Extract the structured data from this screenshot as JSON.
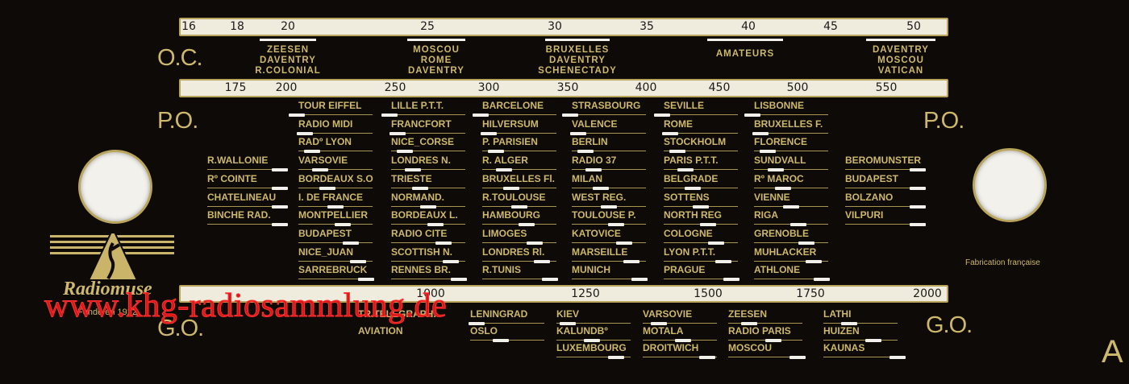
{
  "colors": {
    "background": "#0d0a07",
    "gold": "#cdb86c",
    "scale": "#efebdd",
    "watermark": "#ff1a1a"
  },
  "bands": {
    "oc": "O.C.",
    "po": "P.O.",
    "go": "G.O."
  },
  "oc_scale": [
    "16",
    "18",
    "20",
    "25",
    "30",
    "35",
    "40",
    "45",
    "50"
  ],
  "po_scale": [
    "175",
    "200",
    "250",
    "300",
    "350",
    "400",
    "450",
    "500",
    "550"
  ],
  "go_scale": [
    "1000",
    "1250",
    "1500",
    "1750",
    "2000"
  ],
  "oc_groups": [
    [
      "ZEESEN",
      "DAVENTRY",
      "R.COLONIAL"
    ],
    [
      "MOSCOU",
      "ROME",
      "DAVENTRY"
    ],
    [
      "BRUXELLES",
      "DAVENTRY",
      "SCHENECTADY"
    ],
    [
      "AMATEURS"
    ],
    [
      "DAVENTRY",
      "MOSCOU",
      "VATICAN"
    ]
  ],
  "po_columns": [
    {
      "start_row": 3,
      "stations": [
        "R.WALLONIE",
        "Rº COINTE",
        "CHATELINEAU",
        "BINCHE RAD."
      ]
    },
    {
      "start_row": 0,
      "stations": [
        "TOUR EIFFEL",
        "RADIO MIDI",
        "RADº LYON",
        "VARSOVIE",
        "BORDEAUX S.O",
        "I. DE FRANCE",
        "MONTPELLIER",
        "BUDAPEST",
        "NICE_JUAN",
        "SARREBRUCK"
      ]
    },
    {
      "start_row": 0,
      "stations": [
        "LILLE P.T.T.",
        "FRANCFORT",
        "NICE_CORSE",
        "LONDRES N.",
        "TRIESTE",
        "NORMAND.",
        "BORDEAUX L.",
        "RADIO CITE",
        "SCOTTISH N.",
        "RENNES BR."
      ]
    },
    {
      "start_row": 0,
      "stations": [
        "BARCELONE",
        "HILVERSUM",
        "P. PARISIEN",
        "R. ALGER",
        "BRUXELLES Fl.",
        "R.TOULOUSE",
        "HAMBOURG",
        "LIMOGES",
        "LONDRES Rl.",
        "R.TUNIS"
      ]
    },
    {
      "start_row": 0,
      "stations": [
        "STRASBOURG",
        "VALENCE",
        "BERLIN",
        "RADIO 37",
        "MILAN",
        "WEST REG.",
        "TOULOUSE P.",
        "KATOVICE",
        "MARSEILLE",
        "MUNICH"
      ]
    },
    {
      "start_row": 0,
      "stations": [
        "SEVILLE",
        "ROME",
        "STOCKHOLM",
        "PARIS P.T.T.",
        "BELGRADE",
        "SOTTENS",
        "NORTH REG",
        "COLOGNE",
        "LYON P.T.T.",
        "PRAGUE"
      ]
    },
    {
      "start_row": 0,
      "stations": [
        "LISBONNE",
        "BRUXELLES F.",
        "FLORENCE",
        "SUNDVALL",
        "Rº MAROC",
        "VIENNE",
        "RIGA",
        "GRENOBLE",
        "MUHLACKER",
        "ATHLONE"
      ]
    },
    {
      "start_row": 3,
      "stations": [
        "BEROMUNSTER",
        "BUDAPEST",
        "BOLZANO",
        "VILPURI"
      ]
    }
  ],
  "go_columns": [
    {
      "stations": [
        "TR.TELEGRAPH.",
        "AVIATION"
      ],
      "plain": true
    },
    {
      "stations": [
        "LENINGRAD",
        "OSLO"
      ]
    },
    {
      "stations": [
        "KIEV",
        "KALUNDBº",
        "LUXEMBOURG"
      ]
    },
    {
      "stations": [
        "VARSOVIE",
        "MOTALA",
        "DROITWICH"
      ]
    },
    {
      "stations": [
        "ZEESEN",
        "RADIO PARIS",
        "MOSCOU"
      ]
    },
    {
      "stations": [
        "LATHI",
        "HUIZEN",
        "KAUNAS"
      ]
    }
  ],
  "logo": {
    "brand": "Radiomuse",
    "founded": "Fondé en 1922"
  },
  "fabrication": "Fabrication française",
  "corner_letter": "A",
  "watermark": "www.khg-radiosammlung.de"
}
